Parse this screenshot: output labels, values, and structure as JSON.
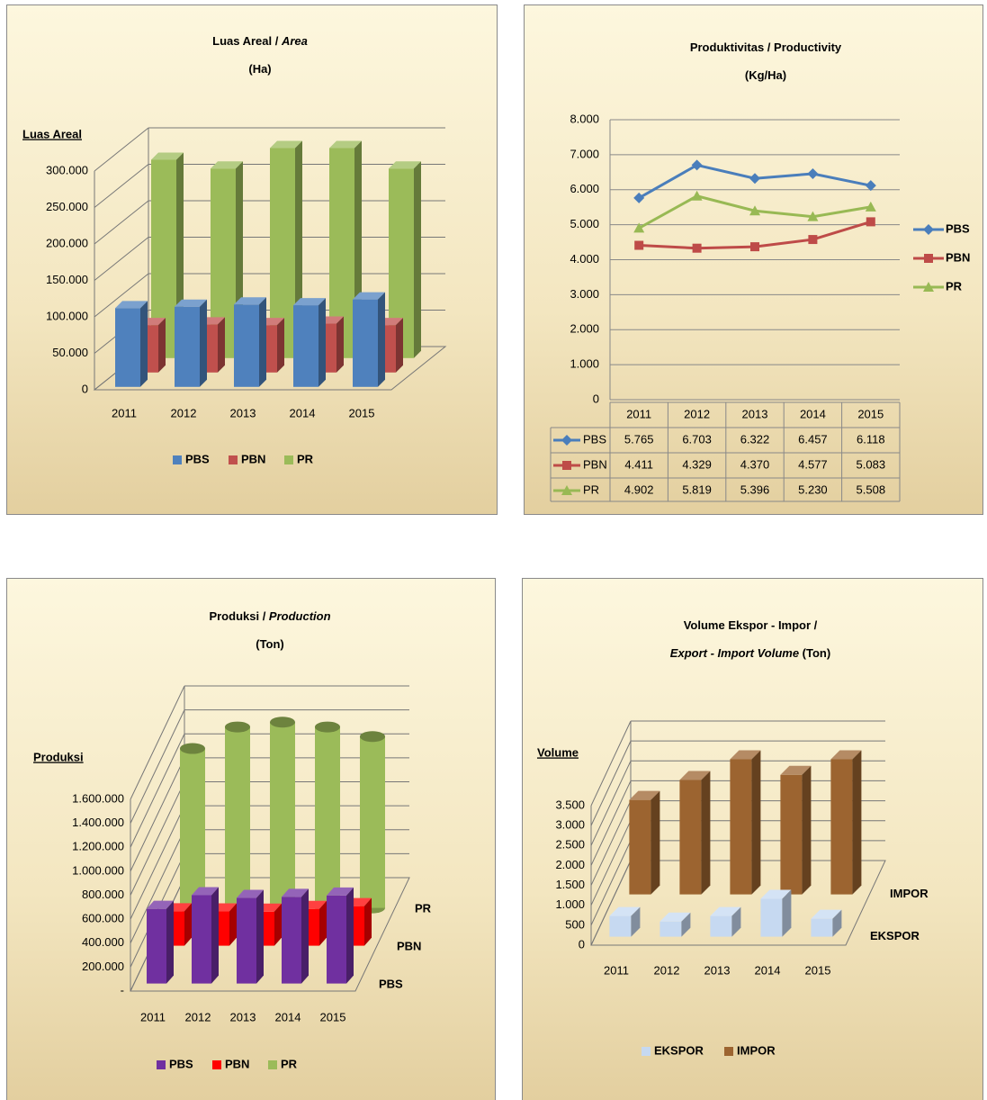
{
  "chart_data": [
    {
      "type": "bar",
      "title": [
        [
          {
            "text": "Luas Areal / "
          },
          {
            "text": "Area",
            "italic": true
          }
        ],
        [
          {
            "text": "(Ha)"
          }
        ]
      ],
      "ylabel": "Luas Areal",
      "categories": [
        "2011",
        "2012",
        "2013",
        "2014",
        "2015"
      ],
      "series": [
        {
          "name": "PBS",
          "color": "#4f81bd",
          "values": [
            108000,
            110000,
            113000,
            112000,
            120000
          ]
        },
        {
          "name": "PBN",
          "color": "#c0504d",
          "values": [
            65000,
            66000,
            65000,
            67000,
            65000
          ]
        },
        {
          "name": "PR",
          "color": "#9bbb59",
          "values": [
            272000,
            260000,
            288000,
            288000,
            260000
          ]
        }
      ],
      "ylim": [
        0,
        300000
      ],
      "yticks": [
        0,
        {
          "value": 50000,
          "label": "50.000"
        },
        {
          "value": 100000,
          "label": "100.000"
        },
        {
          "value": 150000,
          "label": "150.000"
        },
        {
          "value": 200000,
          "label": "200.000"
        },
        {
          "value": 250000,
          "label": "250.000"
        },
        {
          "value": 300000,
          "label": "300.000"
        }
      ],
      "grid": true,
      "legend": "bottom"
    },
    {
      "type": "line",
      "title": [
        [
          {
            "text": "Produktivitas / Productivity"
          }
        ],
        [
          {
            "text": "(Kg/Ha)"
          }
        ]
      ],
      "categories": [
        "2011",
        "2012",
        "2013",
        "2014",
        "2015"
      ],
      "series": [
        {
          "name": "PBS",
          "color": "#4a7ebb",
          "marker": "diamond",
          "values": [
            5765,
            6703,
            6322,
            6457,
            6118
          ],
          "value_labels": [
            "5.765",
            "6.703",
            "6.322",
            "6.457",
            "6.118"
          ]
        },
        {
          "name": "PBN",
          "color": "#be4b48",
          "marker": "square",
          "values": [
            4411,
            4329,
            4370,
            4577,
            5083
          ],
          "value_labels": [
            "4.411",
            "4.329",
            "4.370",
            "4.577",
            "5.083"
          ]
        },
        {
          "name": "PR",
          "color": "#98b954",
          "marker": "triangle",
          "values": [
            4902,
            5819,
            5396,
            5230,
            5508
          ],
          "value_labels": [
            "4.902",
            "5.819",
            "5.396",
            "5.230",
            "5.508"
          ]
        }
      ],
      "ylim": [
        0,
        8000
      ],
      "yticks": [
        0,
        {
          "value": 1000,
          "label": "1.000"
        },
        {
          "value": 2000,
          "label": "2.000"
        },
        {
          "value": 3000,
          "label": "3.000"
        },
        {
          "value": 4000,
          "label": "4.000"
        },
        {
          "value": 5000,
          "label": "5.000"
        },
        {
          "value": 6000,
          "label": "6.000"
        },
        {
          "value": 7000,
          "label": "7.000"
        },
        {
          "value": 8000,
          "label": "8.000"
        }
      ],
      "grid": true,
      "legend": "right",
      "data_table": true
    },
    {
      "type": "bar",
      "title": [
        [
          {
            "text": "Produksi / "
          },
          {
            "text": "Production",
            "italic": true
          }
        ],
        [
          {
            "text": "(Ton)"
          }
        ]
      ],
      "ylabel": "Produksi",
      "categories": [
        "2011",
        "2012",
        "2013",
        "2014",
        "2015"
      ],
      "series": [
        {
          "name": "PBS",
          "color": "#7030a0",
          "values": [
            623000,
            737000,
            714000,
            723000,
            734000
          ]
        },
        {
          "name": "PBN",
          "color": "#ff0000",
          "values": [
            287000,
            286000,
            284000,
            307000,
            330000
          ]
        },
        {
          "name": "PR",
          "color": "#9bbb59",
          "shape": "cylinder",
          "values": [
            1330000,
            1510000,
            1550000,
            1510000,
            1430000
          ]
        }
      ],
      "ylim": [
        0,
        1600000
      ],
      "yticks": [
        {
          "value": 0,
          "label": "-"
        },
        {
          "value": 200000,
          "label": "200.000"
        },
        {
          "value": 400000,
          "label": "400.000"
        },
        {
          "value": 600000,
          "label": "600.000"
        },
        {
          "value": 800000,
          "label": "800.000"
        },
        {
          "value": 1000000,
          "label": "1.000.000"
        },
        {
          "value": 1200000,
          "label": "1.200.000"
        },
        {
          "value": 1400000,
          "label": "1.400.000"
        },
        {
          "value": 1600000,
          "label": "1.600.000"
        }
      ],
      "grid": true,
      "legend": "bottom",
      "depth_labels": true
    },
    {
      "type": "bar",
      "title": [
        [
          {
            "text": "Volume Ekspor - Impor /"
          }
        ],
        [
          {
            "text": "Export - Import Volume",
            "italic": true
          },
          {
            "text": " (Ton)"
          }
        ]
      ],
      "ylabel": "Volume",
      "categories": [
        "2011",
        "2012",
        "2013",
        "2014",
        "2015"
      ],
      "series": [
        {
          "name": "EKSPOR",
          "color": "#c6d9f1",
          "values": [
            520,
            380,
            520,
            950,
            450
          ]
        },
        {
          "name": "IMPOR",
          "color": "#9c6430",
          "values": [
            2370,
            2870,
            3390,
            3000,
            3390
          ]
        }
      ],
      "ylim": [
        0,
        3500
      ],
      "yticks": [
        0,
        500,
        {
          "value": 1000,
          "label": "1.000"
        },
        {
          "value": 1500,
          "label": "1.500"
        },
        {
          "value": 2000,
          "label": "2.000"
        },
        {
          "value": 2500,
          "label": "2.500"
        },
        {
          "value": 3000,
          "label": "3.000"
        },
        {
          "value": 3500,
          "label": "3.500"
        }
      ],
      "grid": true,
      "legend": "bottom",
      "depth_labels": true
    }
  ]
}
